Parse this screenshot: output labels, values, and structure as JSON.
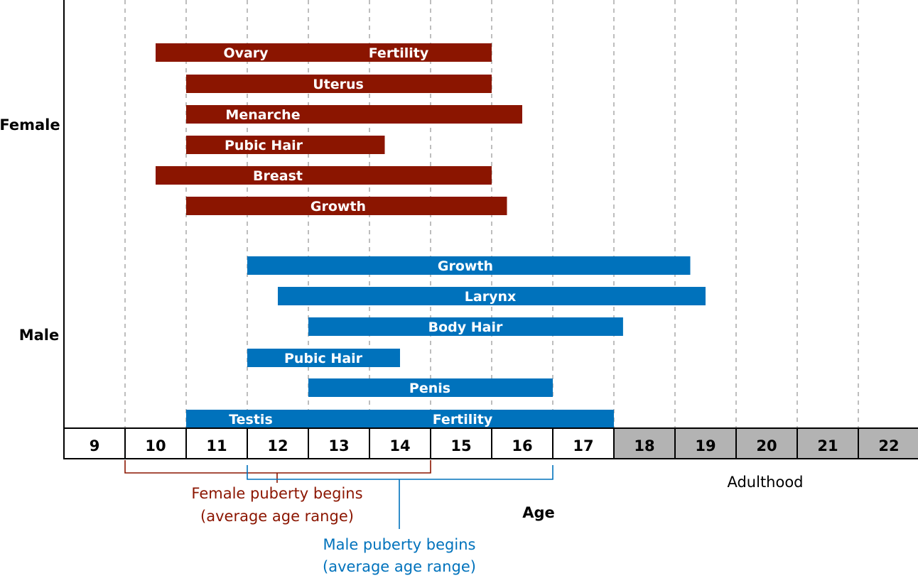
{
  "chart_data": {
    "type": "bar",
    "subtype": "horizontal-range (gantt)",
    "xlabel": "Age",
    "xlim": [
      9,
      23
    ],
    "ticks": [
      "9",
      "10",
      "11",
      "12",
      "13",
      "14",
      "15",
      "16",
      "17",
      "18",
      "19",
      "20",
      "21",
      "22"
    ],
    "adult_from": 18,
    "adult_label": "Adulthood",
    "grid": "vertical dashed",
    "groups": [
      {
        "name": "Female",
        "color": "#8b1500",
        "bars": [
          {
            "labels": [
              "Ovary",
              "Fertility"
            ],
            "start": 10.5,
            "end": 16
          },
          {
            "labels": [
              "Uterus"
            ],
            "start": 11,
            "end": 16
          },
          {
            "labels": [
              "Menarche"
            ],
            "start": 11,
            "end": 16.5
          },
          {
            "labels": [
              "Pubic Hair"
            ],
            "start": 11,
            "end": 14.25
          },
          {
            "labels": [
              "Breast"
            ],
            "start": 10.5,
            "end": 16
          },
          {
            "labels": [
              "Growth"
            ],
            "start": 11,
            "end": 16.25
          }
        ],
        "onset": {
          "start": 10,
          "end": 15,
          "label_line1": "Female puberty begins",
          "label_line2": "(average age range)"
        }
      },
      {
        "name": "Male",
        "color": "#0072bc",
        "bars": [
          {
            "labels": [
              "Growth"
            ],
            "start": 12,
            "end": 19.25
          },
          {
            "labels": [
              "Larynx"
            ],
            "start": 12.5,
            "end": 19.5
          },
          {
            "labels": [
              "Body Hair"
            ],
            "start": 13,
            "end": 18.15
          },
          {
            "labels": [
              "Pubic Hair"
            ],
            "start": 12,
            "end": 14.5
          },
          {
            "labels": [
              "Penis"
            ],
            "start": 13,
            "end": 17
          },
          {
            "labels": [
              "Testis",
              "Fertility"
            ],
            "start": 11,
            "end": 18
          }
        ],
        "onset": {
          "start": 12,
          "end": 17,
          "label_line1": "Male puberty begins",
          "label_line2": "(average age range)"
        }
      }
    ],
    "adult_cell_color": "#b3b3b3"
  }
}
